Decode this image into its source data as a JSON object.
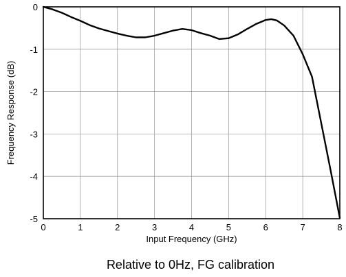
{
  "chart_data": {
    "type": "line",
    "title": "",
    "caption": "Relative to 0Hz, FG calibration",
    "xlabel": "Input Frequency (GHz)",
    "ylabel": "Frequency Response (dB)",
    "xlim": [
      0,
      8
    ],
    "ylim": [
      -5,
      0
    ],
    "xticks": [
      "0",
      "1",
      "2",
      "3",
      "4",
      "5",
      "6",
      "7",
      "8"
    ],
    "yticks": [
      "0",
      "-1",
      "-2",
      "-3",
      "-4",
      "-5"
    ],
    "grid": true,
    "legend": "none",
    "series": [
      {
        "color": "#000000",
        "x": [
          0,
          0.25,
          0.5,
          0.75,
          1.0,
          1.25,
          1.5,
          1.75,
          2.0,
          2.25,
          2.5,
          2.75,
          3.0,
          3.25,
          3.5,
          3.75,
          4.0,
          4.25,
          4.5,
          4.75,
          5.0,
          5.25,
          5.5,
          5.75,
          6.0,
          6.15,
          6.3,
          6.5,
          6.75,
          7.0,
          7.25,
          7.5,
          7.75,
          8.0
        ],
        "y": [
          0,
          -0.06,
          -0.14,
          -0.24,
          -0.33,
          -0.43,
          -0.51,
          -0.57,
          -0.63,
          -0.68,
          -0.72,
          -0.72,
          -0.68,
          -0.62,
          -0.56,
          -0.52,
          -0.55,
          -0.62,
          -0.68,
          -0.76,
          -0.74,
          -0.65,
          -0.52,
          -0.4,
          -0.31,
          -0.29,
          -0.32,
          -0.44,
          -0.68,
          -1.12,
          -1.65,
          -2.75,
          -3.85,
          -4.98
        ]
      }
    ]
  }
}
